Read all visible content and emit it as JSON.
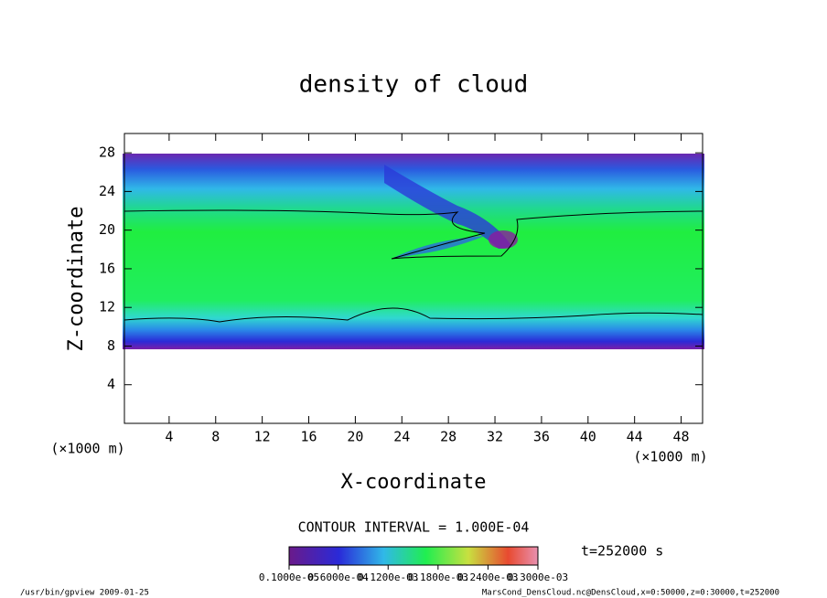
{
  "chart_data": {
    "type": "heatmap",
    "title": "density of cloud",
    "xlabel": "X-coordinate",
    "ylabel": "Z-coordinate",
    "x_unit": "(×1000 m)",
    "y_unit": "(×1000 m)",
    "xlim": [
      0,
      50
    ],
    "ylim": [
      0,
      30
    ],
    "xticks": [
      4,
      8,
      12,
      16,
      20,
      24,
      28,
      32,
      36,
      40,
      44,
      48
    ],
    "yticks": [
      4,
      8,
      12,
      16,
      20,
      24,
      28
    ],
    "contour_label": "CONTOUR INTERVAL = 1.000E-04",
    "time_label": "t=252000 s",
    "clim": [
      1e-06,
      0.0003
    ],
    "cticks": [
      {
        "value": 1e-06,
        "label": "0.1000e-05"
      },
      {
        "value": 6e-05,
        "label": "0.6000e-04"
      },
      {
        "value": 0.00012,
        "label": "0.1200e-03"
      },
      {
        "value": 0.00018,
        "label": "0.1800e-03"
      },
      {
        "value": 0.00024,
        "label": "0.2400e-03"
      },
      {
        "value": 0.0003,
        "label": "0.3000e-03"
      }
    ],
    "footer_left": "/usr/bin/gpview  2009-01-25",
    "footer_right": "MarsCond_DensCloud.nc@DensCloud,x=0:50000,z=0:30000,t=252000"
  }
}
